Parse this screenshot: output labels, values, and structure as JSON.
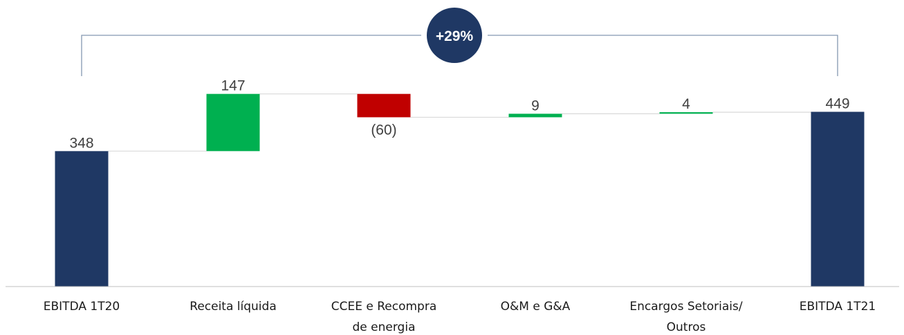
{
  "chart_data": {
    "type": "bar",
    "subtype": "waterfall",
    "categories": [
      [
        "EBITDA 1T20"
      ],
      [
        "Receita líquida"
      ],
      [
        "CCEE e Recompra",
        "de energia"
      ],
      [
        "O&M e G&A"
      ],
      [
        "Encargos Setoriais/",
        "Outros"
      ],
      [
        "EBITDA 1T21"
      ]
    ],
    "values": [
      348,
      147,
      -60,
      9,
      4,
      449
    ],
    "kinds": [
      "total",
      "delta",
      "delta",
      "delta",
      "delta",
      "total"
    ],
    "value_labels": [
      "348",
      "147",
      "(60)",
      "9",
      "4",
      "449"
    ],
    "ylim": [
      0,
      530
    ],
    "grid": false,
    "annotation": "+29%"
  },
  "colors": {
    "total": "#1f3864",
    "increase": "#00b050",
    "decrease": "#c00000",
    "connector": "#d9d9d9",
    "bracket": "#8497b0",
    "badge": "#1f3864",
    "axis": "#bfbfbf"
  }
}
